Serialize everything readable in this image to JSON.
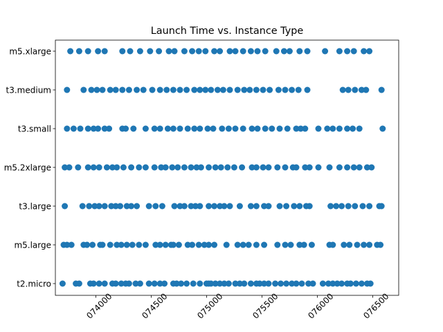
{
  "chart_data": {
    "type": "scatter",
    "title": "Launch Time vs. Instance Type",
    "xlabel": "",
    "ylabel": "",
    "xlim": [
      1.7073635,
      1.7076735
    ],
    "x_ticks": [
      1.7074,
      1.70745,
      1.7075,
      1.70755,
      1.7076,
      1.70765
    ],
    "x_tick_labels": [
      "074000",
      "074500",
      "075000",
      "075500",
      "076000",
      "076500"
    ],
    "categories": [
      "t2.micro",
      "m5.large",
      "t3.large",
      "m5.2xlarge",
      "t3.small",
      "t3.medium",
      "m5.xlarge"
    ],
    "category_tick_labels": [
      "t2.micro",
      "m5.large",
      "t3.large",
      "m5.2xlarge",
      "t3.small",
      "t3.medium",
      "m5.xlarge"
    ],
    "marker_color": "#1f77b4",
    "grid": false,
    "series": [
      {
        "category": "t2.micro",
        "x": [
          1.70737,
          1.707382,
          1.707385,
          1.707395,
          1.707398,
          1.707403,
          1.707408,
          1.707415,
          1.707418,
          1.707423,
          1.707427,
          1.70743,
          1.707436,
          1.70744,
          1.707448,
          1.707453,
          1.707458,
          1.707462,
          1.70747,
          1.707473,
          1.707477,
          1.707482,
          1.707488,
          1.707494,
          1.7075,
          1.707502,
          1.707504,
          1.707508,
          1.707512,
          1.707516,
          1.70752,
          1.707526,
          1.70753,
          1.707534,
          1.70754,
          1.707545,
          1.707548,
          1.707552,
          1.707556,
          1.707562,
          1.707567,
          1.707572,
          1.707577,
          1.707581,
          1.707586,
          1.707592,
          1.707596,
          1.707605,
          1.70761,
          1.707614,
          1.707618,
          1.707622,
          1.707627,
          1.70763,
          1.707635,
          1.70764,
          1.707645,
          1.707648
        ]
      },
      {
        "category": "m5.large",
        "x": [
          1.707371,
          1.707374,
          1.707378,
          1.707389,
          1.707392,
          1.707397,
          1.707404,
          1.707406,
          1.707413,
          1.707419,
          1.707423,
          1.707428,
          1.707433,
          1.707439,
          1.707445,
          1.707454,
          1.707458,
          1.707463,
          1.707468,
          1.70747,
          1.707475,
          1.707483,
          1.707487,
          1.707493,
          1.707498,
          1.707502,
          1.707507,
          1.707518,
          1.707528,
          1.707533,
          1.707538,
          1.707545,
          1.707552,
          1.707564,
          1.707571,
          1.707576,
          1.707584,
          1.707588,
          1.707595,
          1.707611,
          1.707614,
          1.707624,
          1.707629,
          1.707636,
          1.707642,
          1.707647,
          1.707654,
          1.707657
        ]
      },
      {
        "category": "t3.large",
        "x": [
          1.707372,
          1.707388,
          1.707394,
          1.707399,
          1.707403,
          1.707408,
          1.707414,
          1.707418,
          1.707422,
          1.707428,
          1.707432,
          1.707437,
          1.707448,
          1.707454,
          1.70746,
          1.707471,
          1.707476,
          1.70748,
          1.707486,
          1.70749,
          1.707494,
          1.707502,
          1.707507,
          1.707512,
          1.707516,
          1.707521,
          1.70753,
          1.70754,
          1.707545,
          1.707552,
          1.707556,
          1.707566,
          1.707572,
          1.707579,
          1.707584,
          1.70759,
          1.707593,
          1.707612,
          1.707617,
          1.707622,
          1.707628,
          1.707634,
          1.707641,
          1.707647,
          1.707656,
          1.707658
        ]
      },
      {
        "category": "m5.2xlarge",
        "x": [
          1.707372,
          1.707376,
          1.707384,
          1.707393,
          1.707398,
          1.707403,
          1.70741,
          1.707415,
          1.707419,
          1.707425,
          1.707432,
          1.707439,
          1.707445,
          1.707453,
          1.707459,
          1.707463,
          1.707469,
          1.707474,
          1.70748,
          1.707486,
          1.707491,
          1.707495,
          1.707502,
          1.707508,
          1.707513,
          1.707519,
          1.707525,
          1.707532,
          1.707541,
          1.707545,
          1.707551,
          1.707556,
          1.707564,
          1.707571,
          1.707578,
          1.707581,
          1.707589,
          1.707593,
          1.707601,
          1.707611,
          1.70762,
          1.707627,
          1.707633,
          1.707638,
          1.707645,
          1.707649
        ]
      },
      {
        "category": "t3.small",
        "x": [
          1.707374,
          1.70738,
          1.707386,
          1.707393,
          1.707398,
          1.707402,
          1.707408,
          1.707412,
          1.707424,
          1.707427,
          1.707434,
          1.707445,
          1.707453,
          1.707458,
          1.707465,
          1.70747,
          1.707476,
          1.707483,
          1.707489,
          1.707494,
          1.707501,
          1.707506,
          1.707514,
          1.70752,
          1.707526,
          1.707533,
          1.707541,
          1.707546,
          1.707553,
          1.707559,
          1.707566,
          1.707573,
          1.707581,
          1.707585,
          1.707589,
          1.707601,
          1.707609,
          1.707614,
          1.70762,
          1.707627,
          1.707632,
          1.707638,
          1.707659
        ]
      },
      {
        "category": "t3.medium",
        "x": [
          1.707374,
          1.707389,
          1.707396,
          1.707401,
          1.707406,
          1.707413,
          1.707418,
          1.707424,
          1.70743,
          1.707437,
          1.707443,
          1.707451,
          1.707458,
          1.707464,
          1.70747,
          1.707476,
          1.707482,
          1.707489,
          1.707494,
          1.707499,
          1.707504,
          1.70751,
          1.707515,
          1.707521,
          1.707528,
          1.707534,
          1.707539,
          1.707545,
          1.707551,
          1.707557,
          1.707565,
          1.707571,
          1.707577,
          1.707583,
          1.707591,
          1.707623,
          1.707628,
          1.707634,
          1.70764,
          1.707644,
          1.707658
        ]
      },
      {
        "category": "m5.xlarge",
        "x": [
          1.707377,
          1.707385,
          1.707393,
          1.707402,
          1.707408,
          1.707424,
          1.707431,
          1.70744,
          1.707449,
          1.707457,
          1.707466,
          1.707471,
          1.70748,
          1.707487,
          1.707493,
          1.707499,
          1.707507,
          1.707512,
          1.707521,
          1.707526,
          1.707533,
          1.70754,
          1.707546,
          1.707553,
          1.707563,
          1.70757,
          1.707575,
          1.707584,
          1.707591,
          1.707607,
          1.70762,
          1.707627,
          1.707633,
          1.707642,
          1.707647
        ]
      }
    ]
  }
}
